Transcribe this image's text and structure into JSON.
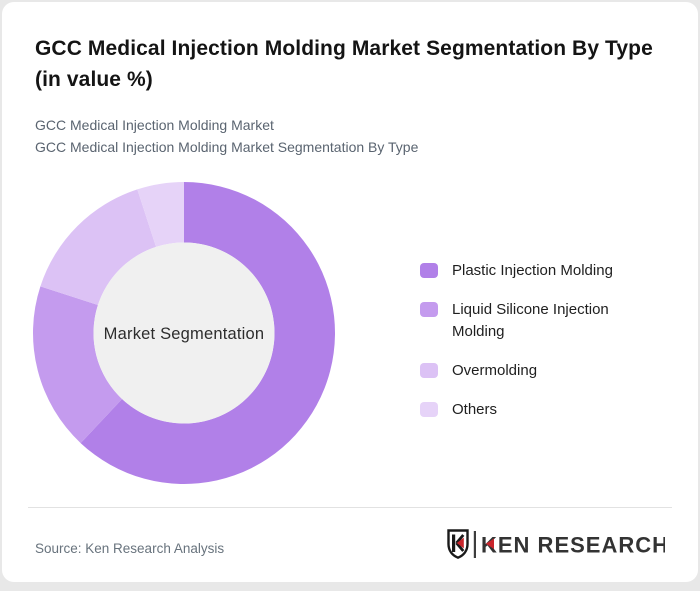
{
  "header": {
    "title": "GCC Medical Injection Molding Market Segmentation By Type (in value %)",
    "subtitle_line1": "GCC Medical Injection Molding Market",
    "subtitle_line2": "GCC Medical Injection Molding Market Segmentation By Type"
  },
  "chart_data": {
    "type": "pie",
    "subtype": "donut",
    "title": "GCC Medical Injection Molding Market Segmentation By Type (in value %)",
    "center_label": "Market Segmentation",
    "categories": [
      "Plastic Injection Molding",
      "Liquid Silicone Injection Molding",
      "Overmolding",
      "Others"
    ],
    "values": [
      62,
      18,
      15,
      5
    ],
    "units": "% of value",
    "colors": [
      "#b180e8",
      "#c49bee",
      "#dcc2f5",
      "#e6d3f8"
    ],
    "inner_circle_color": "#f0f0f0",
    "start_angle_deg": 0,
    "direction": "clockwise",
    "legend_position": "right",
    "data_labels": "none"
  },
  "footer": {
    "source": "Source: Ken Research Analysis",
    "logo_text": "KEN RESEARCH"
  },
  "brand": {
    "logo_red": "#c9252c",
    "logo_dark": "#333333",
    "logo_black": "#1a1a1a"
  }
}
